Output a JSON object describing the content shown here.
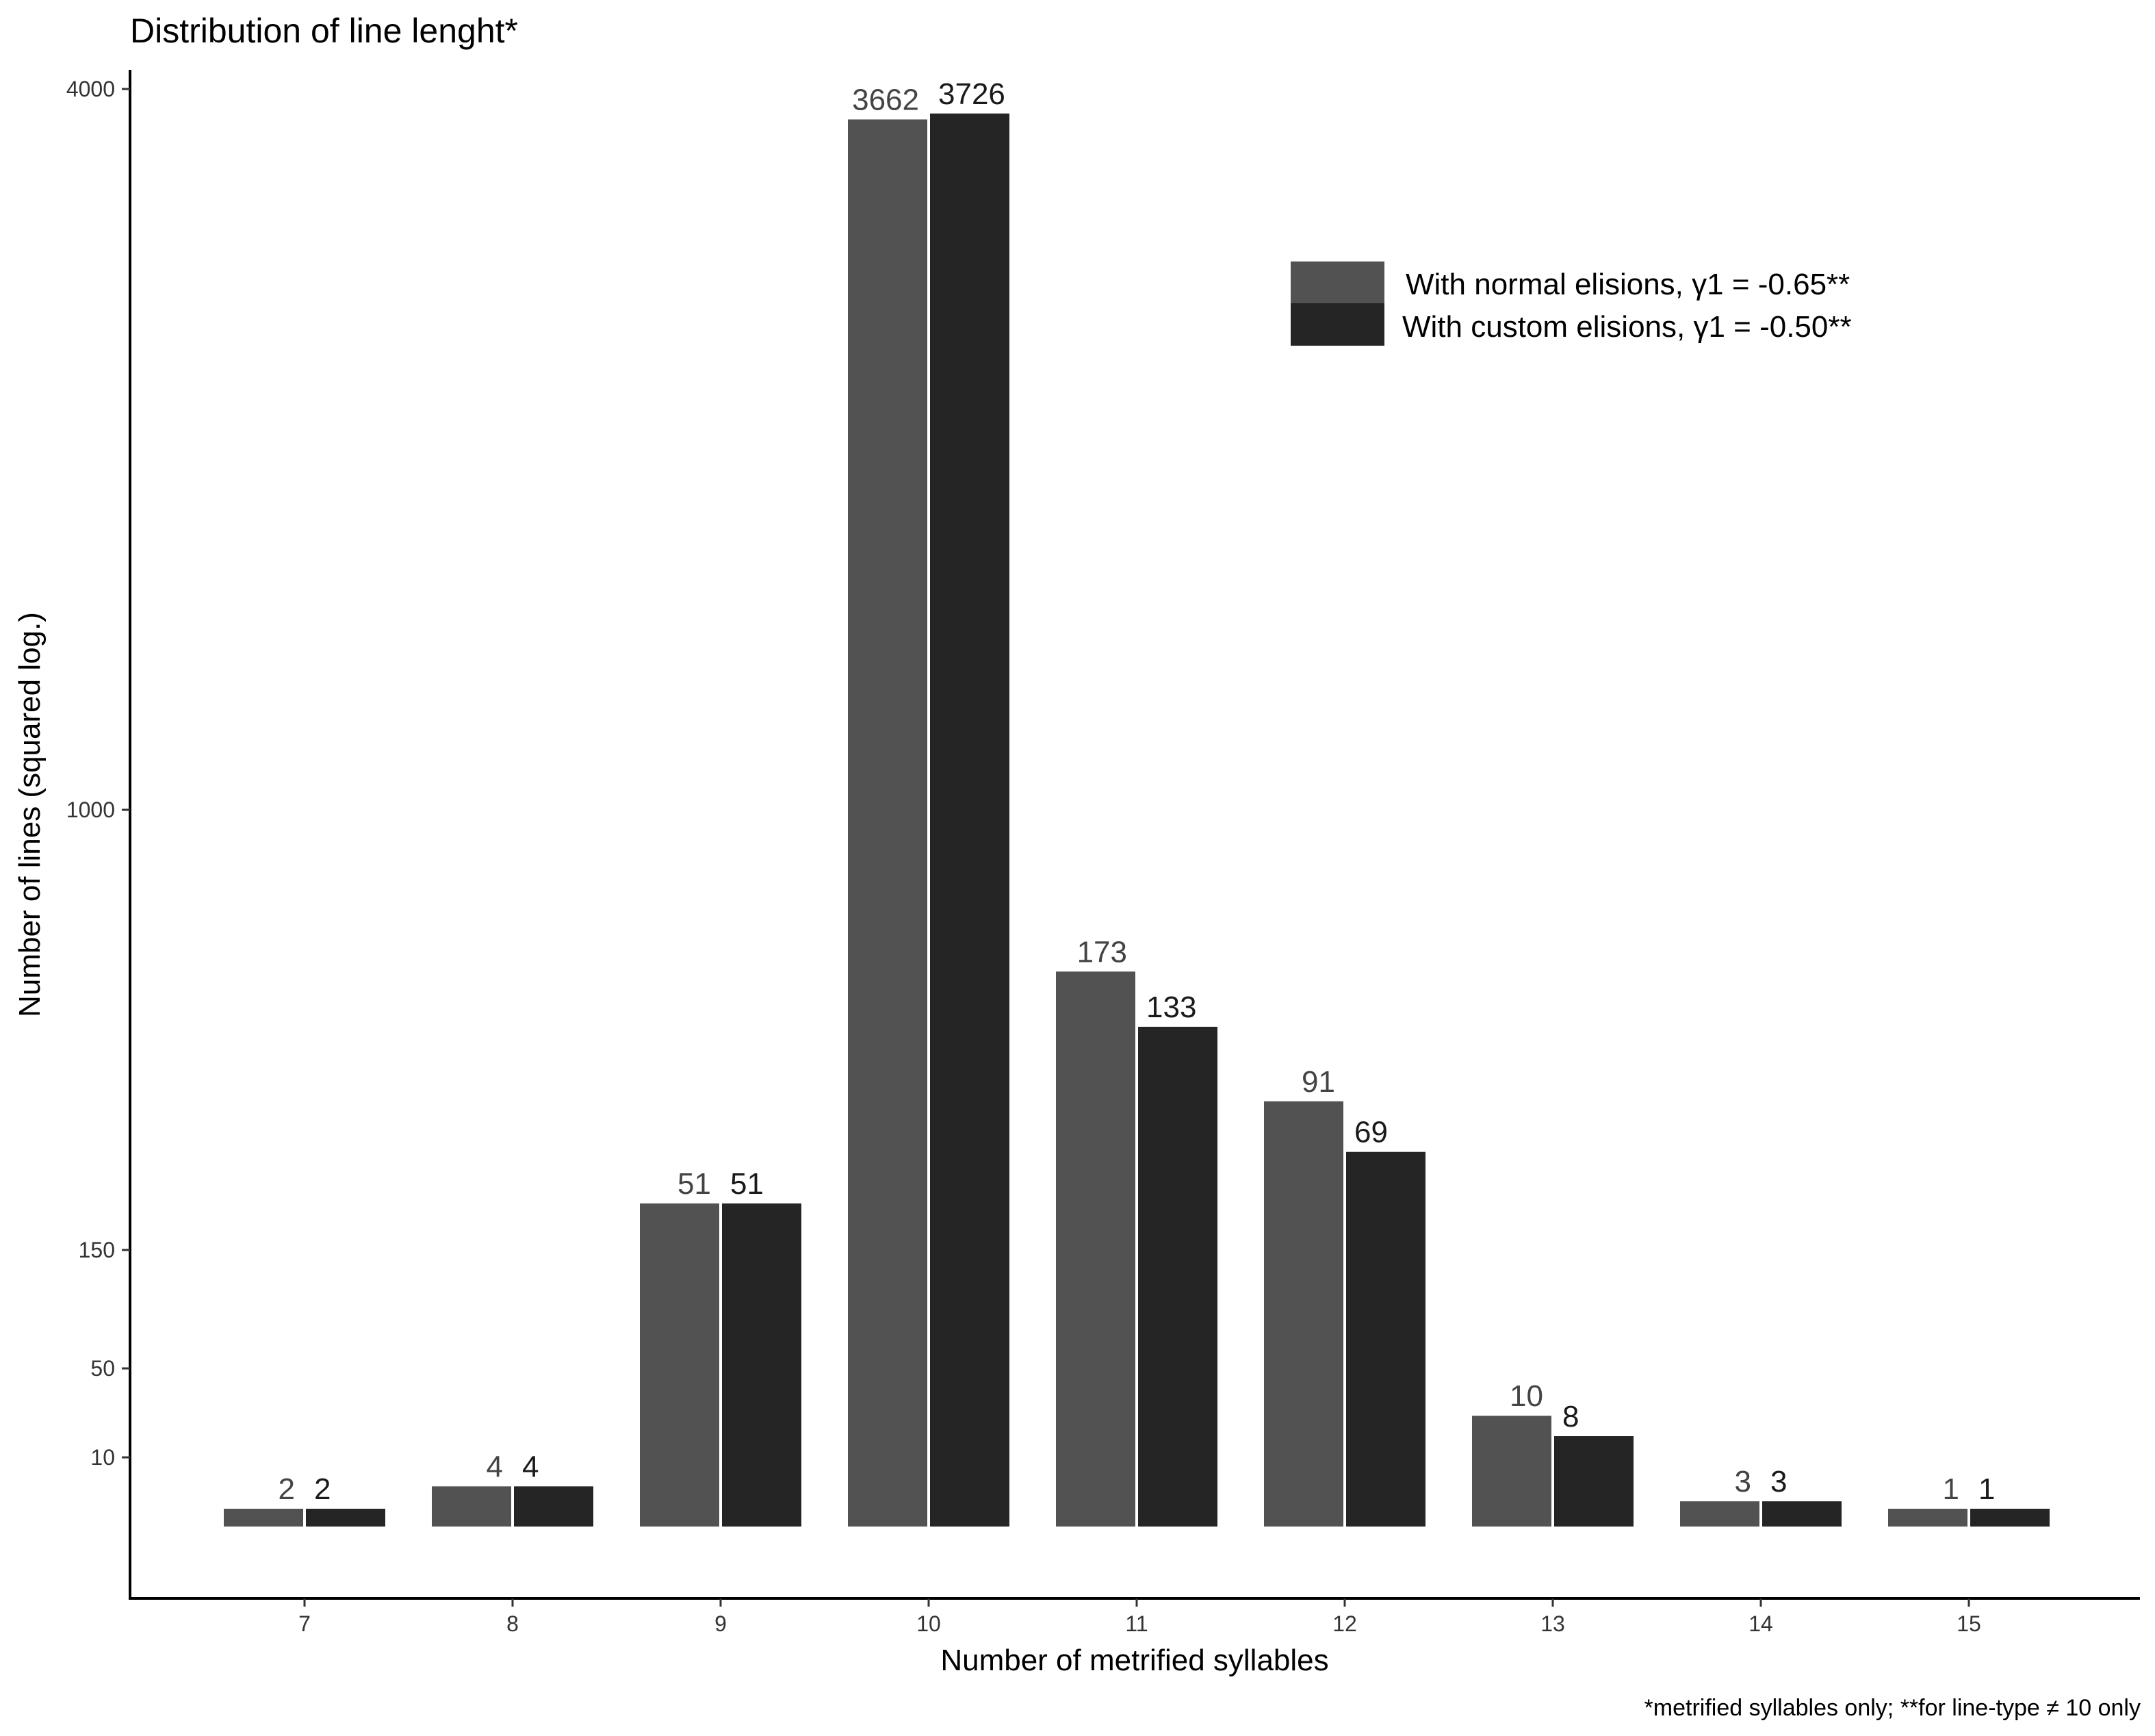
{
  "chart_data": {
    "type": "bar",
    "title": "Distribution of line lenght*",
    "xlabel": "Number of metrified syllables",
    "ylabel": "Number of lines (squared log.)",
    "caption": "*metrified syllables only; **for line-type ≠ 10 only",
    "y_scale": "squared log",
    "y_ticks": [
      10,
      50,
      150,
      1000,
      4000
    ],
    "y_tick_labels": [
      "10",
      "50",
      "150",
      "1000",
      "4000"
    ],
    "categories": [
      "7",
      "8",
      "9",
      "10",
      "11",
      "12",
      "13",
      "14",
      "15"
    ],
    "series": [
      {
        "name": "With normal elisions, γ1 = -0.65**",
        "color": "#525252",
        "values": [
          2,
          4,
          51,
          3662,
          173,
          91,
          10,
          3,
          1
        ],
        "labels": [
          "2",
          "4",
          "51",
          "3662",
          "173",
          "91",
          "10",
          "3",
          "1"
        ]
      },
      {
        "name": "With custom elisions, γ1 = -0.50**",
        "color": "#252525",
        "values": [
          2,
          4,
          51,
          3726,
          133,
          69,
          8,
          3,
          1
        ],
        "labels": [
          "2",
          "4",
          "51",
          "3726",
          "133",
          "69",
          "8",
          "3",
          "1"
        ]
      }
    ],
    "legend_position": "top-right",
    "grid": false
  }
}
